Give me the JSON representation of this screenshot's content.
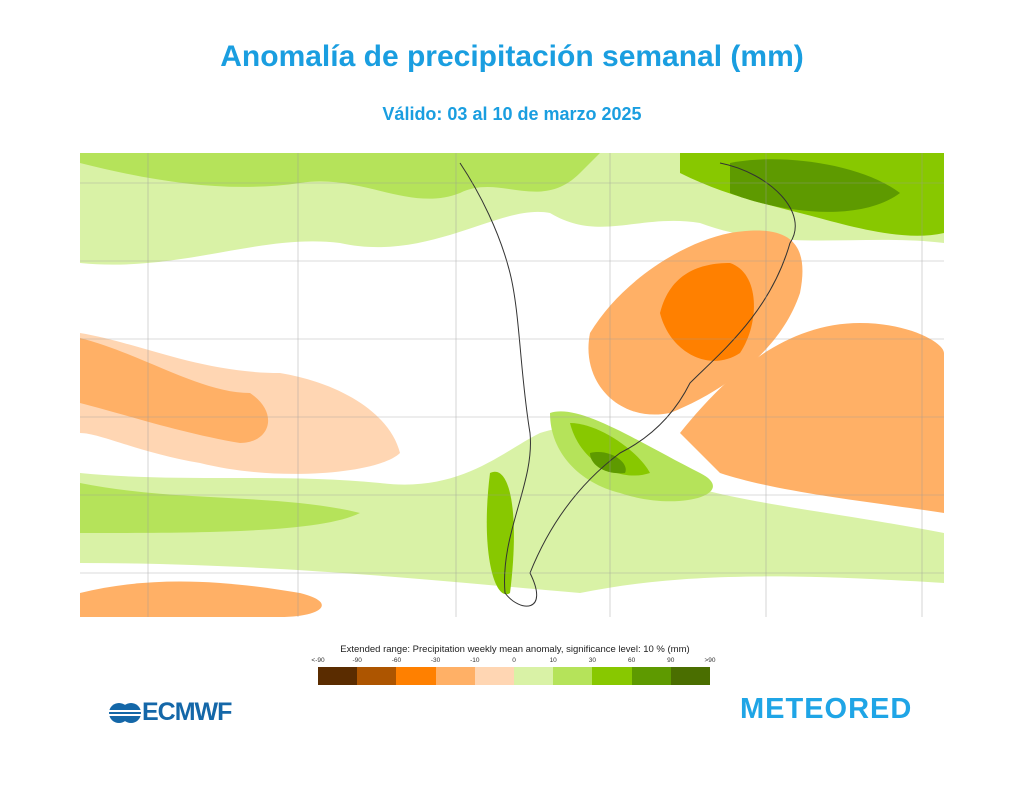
{
  "title": "Anomalía de precipitación semanal (mm)",
  "subtitle": "Válido: 03 al 10 de marzo 2025",
  "legend": {
    "title": "Extended range: Precipitation weekly mean anomaly, significance level: 10 % (mm)",
    "ticks": [
      "<-90",
      "-90",
      "-60",
      "-30",
      "-10",
      "0",
      "10",
      "30",
      "60",
      "90",
      ">90"
    ],
    "colors": [
      "#5a2c00",
      "#ad5500",
      "#ff8000",
      "#ffb066",
      "#ffd6b3",
      "#d9f2a6",
      "#b5e35a",
      "#88c800",
      "#5e9a00",
      "#4a6e00"
    ]
  },
  "logos": {
    "ecmwf": "ECMWF",
    "meteored": "METEORED"
  }
}
